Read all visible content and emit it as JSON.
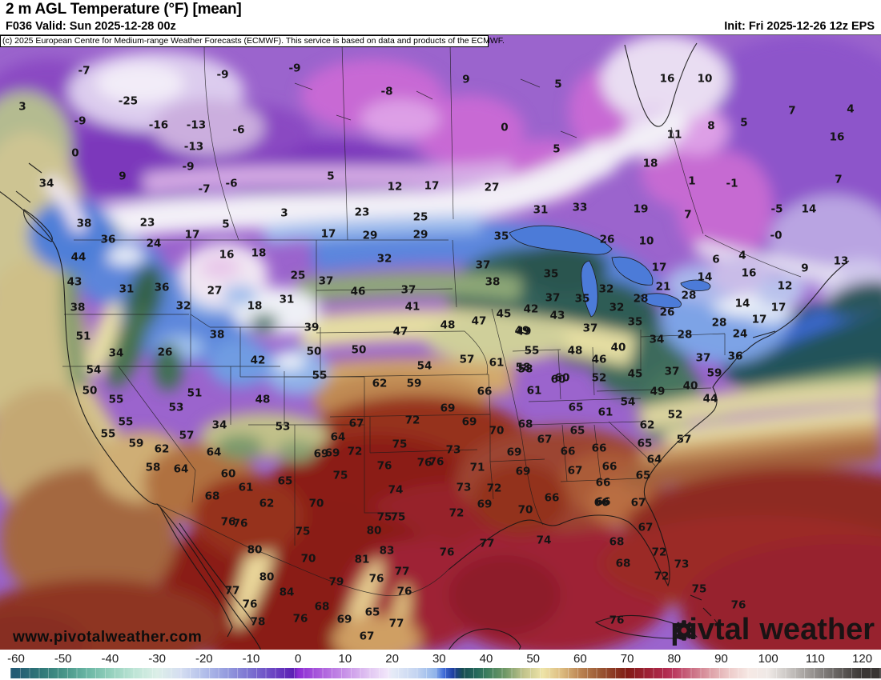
{
  "header": {
    "title": "2 m AGL Temperature (°F) [mean]",
    "valid": "F036 Valid: Sun 2025-12-28 00z",
    "init": "Init: Fri 2025-12-26 12z EPS"
  },
  "copyright": "(c) 2025 European Centre for Medium-range Weather Forecasts (ECMWF). This service is based on data and products of the ECMWF.",
  "watermark": "www.pivotalweather.com",
  "logo": {
    "p1": "piv",
    "p2": "tal",
    "p3": "weather"
  },
  "colorbar": {
    "ticks": [
      -60,
      -50,
      -40,
      -30,
      -20,
      -10,
      0,
      10,
      20,
      30,
      40,
      50,
      60,
      70,
      80,
      90,
      100,
      110,
      120
    ],
    "stops": [
      [
        -60,
        "#235b74"
      ],
      [
        -55,
        "#2f7678"
      ],
      [
        -50,
        "#459387"
      ],
      [
        -45,
        "#68b5a3"
      ],
      [
        -40,
        "#93d0bc"
      ],
      [
        -35,
        "#bce4d5"
      ],
      [
        -30,
        "#dcefe8"
      ],
      [
        -25,
        "#d5def1"
      ],
      [
        -20,
        "#b3bfea"
      ],
      [
        -15,
        "#939ade"
      ],
      [
        -10,
        "#7a70d0"
      ],
      [
        -5,
        "#6a42c2"
      ],
      [
        -1,
        "#5c1fb4"
      ],
      [
        0,
        "#8c2cd4"
      ],
      [
        5,
        "#ad60dd"
      ],
      [
        10,
        "#c893e8"
      ],
      [
        15,
        "#e1c5f2"
      ],
      [
        19,
        "#f1e6fa"
      ],
      [
        20,
        "#e6ebf7"
      ],
      [
        25,
        "#c5d5f1"
      ],
      [
        29,
        "#93b6ea"
      ],
      [
        31,
        "#3f6bd8"
      ],
      [
        33,
        "#1e3e9f"
      ],
      [
        35,
        "#174d52"
      ],
      [
        38,
        "#26695c"
      ],
      [
        40,
        "#3a7d5e"
      ],
      [
        44,
        "#6f9866"
      ],
      [
        48,
        "#c2c48c"
      ],
      [
        52,
        "#eee4a8"
      ],
      [
        56,
        "#ddbc80"
      ],
      [
        60,
        "#bb8452"
      ],
      [
        64,
        "#9c5a36"
      ],
      [
        68,
        "#872f1d"
      ],
      [
        70,
        "#821b15"
      ],
      [
        74,
        "#9c2133"
      ],
      [
        78,
        "#b02a4e"
      ],
      [
        80,
        "#bc3a60"
      ],
      [
        84,
        "#cc7186"
      ],
      [
        88,
        "#dfa4aa"
      ],
      [
        92,
        "#eecdcc"
      ],
      [
        96,
        "#f6e9e5"
      ],
      [
        100,
        "#efe9e6"
      ],
      [
        104,
        "#ccc8c5"
      ],
      [
        108,
        "#a5a19e"
      ],
      [
        112,
        "#7e7a78"
      ],
      [
        116,
        "#5a5654"
      ],
      [
        120,
        "#3a3634"
      ]
    ]
  },
  "map": {
    "stations": [
      [
        "-7",
        105,
        87
      ],
      [
        "-9",
        278,
        92
      ],
      [
        "-9",
        368,
        84
      ],
      [
        "-8",
        483,
        113
      ],
      [
        "-25",
        160,
        125
      ],
      [
        "3",
        28,
        132
      ],
      [
        "-9",
        100,
        150
      ],
      [
        "-16",
        198,
        155
      ],
      [
        "-13",
        245,
        155
      ],
      [
        "-6",
        298,
        161
      ],
      [
        "-13",
        242,
        182
      ],
      [
        "0",
        94,
        190
      ],
      [
        "-9",
        235,
        207
      ],
      [
        "9",
        153,
        219
      ],
      [
        "34",
        58,
        228
      ],
      [
        "-6",
        289,
        228
      ],
      [
        "-7",
        255,
        235
      ],
      [
        "9",
        582,
        98
      ],
      [
        "5",
        697,
        104
      ],
      [
        "0",
        630,
        158
      ],
      [
        "5",
        695,
        185
      ],
      [
        "5",
        413,
        219
      ],
      [
        "12",
        493,
        232
      ],
      [
        "17",
        539,
        231
      ],
      [
        "27",
        614,
        233
      ],
      [
        "16",
        833,
        97
      ],
      [
        "10",
        880,
        97
      ],
      [
        "8",
        888,
        156
      ],
      [
        "11",
        842,
        167
      ],
      [
        "5",
        929,
        152
      ],
      [
        "7",
        989,
        137
      ],
      [
        "4",
        1062,
        135
      ],
      [
        "16",
        1045,
        170
      ],
      [
        "18",
        812,
        203
      ],
      [
        "1",
        864,
        225
      ],
      [
        "-1",
        914,
        228
      ],
      [
        "7",
        1047,
        223
      ],
      [
        "19",
        800,
        260
      ],
      [
        "7",
        859,
        267
      ],
      [
        "-5",
        970,
        260
      ],
      [
        "14",
        1010,
        260
      ],
      [
        "10",
        807,
        300
      ],
      [
        "-0",
        969,
        293
      ],
      [
        "6",
        894,
        323
      ],
      [
        "4",
        927,
        318
      ],
      [
        "16",
        935,
        340
      ],
      [
        "9",
        1005,
        334
      ],
      [
        "13",
        1050,
        325
      ],
      [
        "14",
        880,
        345
      ],
      [
        "12",
        980,
        356
      ],
      [
        "17",
        823,
        333
      ],
      [
        "23",
        184,
        277
      ],
      [
        "36",
        135,
        298
      ],
      [
        "24",
        192,
        303
      ],
      [
        "17",
        240,
        292
      ],
      [
        "5",
        282,
        279
      ],
      [
        "3",
        355,
        265
      ],
      [
        "38",
        105,
        278
      ],
      [
        "23",
        452,
        264
      ],
      [
        "25",
        525,
        270
      ],
      [
        "17",
        410,
        291
      ],
      [
        "29",
        462,
        293
      ],
      [
        "29",
        525,
        292
      ],
      [
        "31",
        675,
        261
      ],
      [
        "33",
        724,
        258
      ],
      [
        "35",
        626,
        294
      ],
      [
        "26",
        758,
        298
      ],
      [
        "44",
        98,
        320
      ],
      [
        "43",
        93,
        351
      ],
      [
        "31",
        158,
        360
      ],
      [
        "36",
        202,
        358
      ],
      [
        "27",
        268,
        362
      ],
      [
        "16",
        283,
        317
      ],
      [
        "18",
        323,
        315
      ],
      [
        "32",
        229,
        381
      ],
      [
        "38",
        97,
        383
      ],
      [
        "51",
        104,
        419
      ],
      [
        "34",
        145,
        440
      ],
      [
        "26",
        206,
        439
      ],
      [
        "38",
        271,
        417
      ],
      [
        "42",
        322,
        449
      ],
      [
        "25",
        372,
        343
      ],
      [
        "37",
        407,
        350
      ],
      [
        "31",
        358,
        373
      ],
      [
        "18",
        318,
        381
      ],
      [
        "39",
        389,
        408
      ],
      [
        "46",
        447,
        363
      ],
      [
        "37",
        510,
        361
      ],
      [
        "41",
        515,
        382
      ],
      [
        "32",
        480,
        322
      ],
      [
        "37",
        603,
        330
      ],
      [
        "38",
        615,
        351
      ],
      [
        "35",
        688,
        341
      ],
      [
        "32",
        757,
        360
      ],
      [
        "37",
        690,
        371
      ],
      [
        "35",
        727,
        372
      ],
      [
        "42",
        663,
        385
      ],
      [
        "45",
        629,
        391
      ],
      [
        "43",
        696,
        393
      ],
      [
        "47",
        598,
        400
      ],
      [
        "49",
        652,
        412
      ],
      [
        "32",
        770,
        383
      ],
      [
        "35",
        793,
        401
      ],
      [
        "37",
        737,
        409
      ],
      [
        "40",
        772,
        433
      ],
      [
        "46",
        748,
        448
      ],
      [
        "48",
        718,
        437
      ],
      [
        "55",
        664,
        437
      ],
      [
        "57",
        583,
        448
      ],
      [
        "61",
        620,
        452
      ],
      [
        "21",
        828,
        357
      ],
      [
        "28",
        800,
        372
      ],
      [
        "28",
        860,
        368
      ],
      [
        "26",
        833,
        389
      ],
      [
        "28",
        898,
        402
      ],
      [
        "28",
        855,
        417
      ],
      [
        "34",
        820,
        423
      ],
      [
        "24",
        924,
        416
      ],
      [
        "17",
        948,
        398
      ],
      [
        "17",
        972,
        383
      ],
      [
        "14",
        927,
        378
      ],
      [
        "36",
        918,
        444
      ],
      [
        "37",
        878,
        446
      ],
      [
        "50",
        392,
        438
      ],
      [
        "50",
        448,
        436
      ],
      [
        "47",
        500,
        413
      ],
      [
        "48",
        559,
        405
      ],
      [
        "49",
        654,
        413
      ],
      [
        "54",
        530,
        456
      ],
      [
        "58",
        656,
        460
      ],
      [
        "55",
        399,
        468
      ],
      [
        "62",
        474,
        478
      ],
      [
        "59",
        517,
        478
      ],
      [
        "60",
        702,
        471
      ],
      [
        "66",
        605,
        488
      ],
      [
        "61",
        667,
        487
      ],
      [
        "69",
        559,
        509
      ],
      [
        "65",
        719,
        508
      ],
      [
        "67",
        445,
        528
      ],
      [
        "72",
        515,
        524
      ],
      [
        "69",
        586,
        526
      ],
      [
        "70",
        620,
        537
      ],
      [
        "68",
        656,
        529
      ],
      [
        "64",
        422,
        545
      ],
      [
        "67",
        680,
        548
      ],
      [
        "65",
        721,
        537
      ],
      [
        "72",
        443,
        563
      ],
      [
        "75",
        499,
        554
      ],
      [
        "73",
        566,
        561
      ],
      [
        "69",
        415,
        565
      ],
      [
        "69",
        642,
        564
      ],
      [
        "66",
        709,
        563
      ],
      [
        "76",
        545,
        576
      ],
      [
        "54",
        117,
        461
      ],
      [
        "50",
        112,
        487
      ],
      [
        "55",
        145,
        498
      ],
      [
        "51",
        243,
        490
      ],
      [
        "48",
        328,
        498
      ],
      [
        "53",
        220,
        508
      ],
      [
        "55",
        157,
        526
      ],
      [
        "34",
        274,
        530
      ],
      [
        "53",
        353,
        532
      ],
      [
        "55",
        135,
        541
      ],
      [
        "57",
        233,
        543
      ],
      [
        "59",
        170,
        553
      ],
      [
        "62",
        202,
        560
      ],
      [
        "64",
        267,
        564
      ],
      [
        "69",
        401,
        566
      ],
      [
        "76",
        480,
        581
      ],
      [
        "76",
        530,
        577
      ],
      [
        "58",
        191,
        583
      ],
      [
        "64",
        226,
        585
      ],
      [
        "60",
        285,
        591
      ],
      [
        "75",
        425,
        593
      ],
      [
        "65",
        356,
        600
      ],
      [
        "61",
        307,
        608
      ],
      [
        "74",
        494,
        611
      ],
      [
        "68",
        265,
        619
      ],
      [
        "62",
        333,
        628
      ],
      [
        "70",
        395,
        628
      ],
      [
        "75",
        480,
        645
      ],
      [
        "76",
        285,
        651
      ],
      [
        "58",
        653,
        458
      ],
      [
        "60",
        697,
        473
      ],
      [
        "52",
        748,
        471
      ],
      [
        "45",
        793,
        466
      ],
      [
        "37",
        839,
        463
      ],
      [
        "59",
        892,
        465
      ],
      [
        "40",
        862,
        481
      ],
      [
        "49",
        821,
        488
      ],
      [
        "44",
        887,
        497
      ],
      [
        "54",
        784,
        501
      ],
      [
        "61",
        756,
        514
      ],
      [
        "52",
        843,
        517
      ],
      [
        "62",
        808,
        530
      ],
      [
        "65",
        805,
        553
      ],
      [
        "57",
        854,
        548
      ],
      [
        "66",
        748,
        559
      ],
      [
        "64",
        817,
        573
      ],
      [
        "71",
        596,
        583
      ],
      [
        "69",
        653,
        588
      ],
      [
        "67",
        718,
        587
      ],
      [
        "66",
        761,
        582
      ],
      [
        "65",
        803,
        593
      ],
      [
        "73",
        579,
        608
      ],
      [
        "72",
        617,
        609
      ],
      [
        "66",
        753,
        602
      ],
      [
        "69",
        605,
        629
      ],
      [
        "66",
        689,
        621
      ],
      [
        "66",
        751,
        627
      ],
      [
        "70",
        656,
        636
      ],
      [
        "67",
        797,
        627
      ],
      [
        "72",
        570,
        640
      ],
      [
        "66",
        753,
        626
      ],
      [
        "74",
        679,
        674
      ],
      [
        "67",
        806,
        658
      ],
      [
        "68",
        770,
        676
      ],
      [
        "72",
        823,
        689
      ],
      [
        "68",
        778,
        703
      ],
      [
        "73",
        851,
        704
      ],
      [
        "72",
        826,
        719
      ],
      [
        "75",
        873,
        735
      ],
      [
        "76",
        922,
        755
      ],
      [
        "76",
        770,
        774
      ],
      [
        "76",
        300,
        653
      ],
      [
        "75",
        378,
        663
      ],
      [
        "75",
        497,
        645
      ],
      [
        "80",
        467,
        662
      ],
      [
        "80",
        318,
        686
      ],
      [
        "70",
        385,
        697
      ],
      [
        "83",
        483,
        687
      ],
      [
        "81",
        452,
        698
      ],
      [
        "77",
        608,
        678
      ],
      [
        "76",
        558,
        689
      ],
      [
        "77",
        502,
        713
      ],
      [
        "80",
        333,
        720
      ],
      [
        "79",
        420,
        726
      ],
      [
        "76",
        470,
        722
      ],
      [
        "77",
        290,
        737
      ],
      [
        "84",
        358,
        739
      ],
      [
        "76",
        505,
        738
      ],
      [
        "76",
        312,
        754
      ],
      [
        "68",
        402,
        757
      ],
      [
        "65",
        465,
        764
      ],
      [
        "78",
        322,
        776
      ],
      [
        "76",
        375,
        772
      ],
      [
        "69",
        430,
        773
      ],
      [
        "77",
        495,
        778
      ],
      [
        "67",
        458,
        794
      ]
    ]
  }
}
